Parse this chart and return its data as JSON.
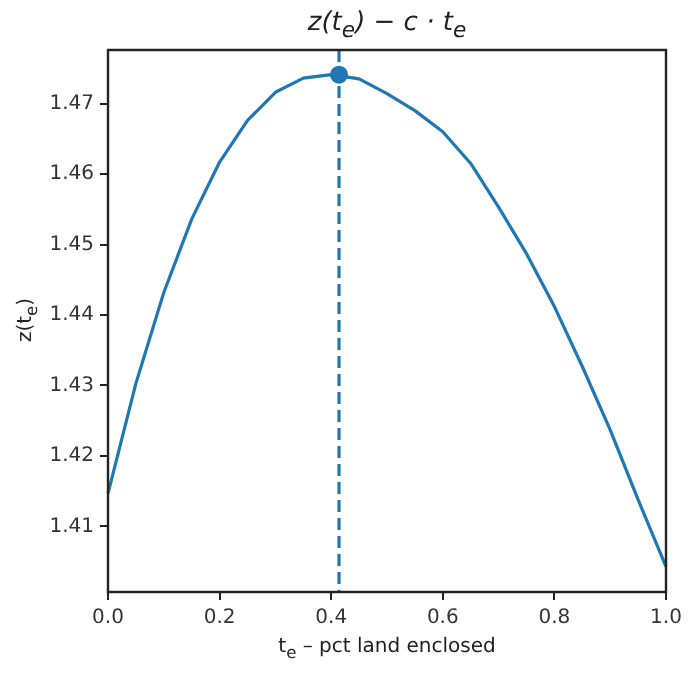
{
  "chart_data": {
    "type": "line",
    "title": "z(t$_{e}$) − c · t$_{e}$",
    "xlabel": "t$_{e}$ – pct land enclosed",
    "ylabel": "z(t$_{e}$)",
    "x": [
      0,
      0.05,
      0.1,
      0.15,
      0.2,
      0.25,
      0.3,
      0.35,
      0.4,
      0.45,
      0.5,
      0.55,
      0.6,
      0.65,
      0.7,
      0.75,
      0.8,
      0.85,
      0.9,
      0.95,
      1
    ],
    "series": [
      {
        "color": "#1f77b4",
        "values": [
          1.4147,
          1.4303,
          1.4432,
          1.4536,
          1.4617,
          1.4676,
          1.4716,
          1.4736,
          1.4741,
          1.4735,
          1.4714,
          1.469,
          1.466,
          1.4615,
          1.4553,
          1.4487,
          1.4412,
          1.4327,
          1.4237,
          1.4138,
          1.4043
        ]
      },
      {
        "type": "scatter",
        "color": "#1f77b4",
        "marker": "circle",
        "x": [
          0.414
        ],
        "values": [
          1.4741
        ]
      }
    ],
    "ref_lines": [
      {
        "axis": "x",
        "value": 0.414,
        "color": "#1f77b4",
        "line_style": "dashed"
      }
    ],
    "xlim": [
      0,
      1
    ],
    "ylim": [
      1.4007,
      1.4776
    ],
    "xticks": [
      {
        "value": 0,
        "label": "0.0"
      },
      0.2,
      0.4,
      0.6,
      0.8,
      {
        "value": 1,
        "label": "1.0"
      }
    ],
    "yticks": [
      1.41,
      1.42,
      1.43,
      1.44,
      1.45,
      1.46,
      1.47
    ],
    "grid": false,
    "legend": false,
    "marker": "none",
    "line_style": "solid"
  }
}
